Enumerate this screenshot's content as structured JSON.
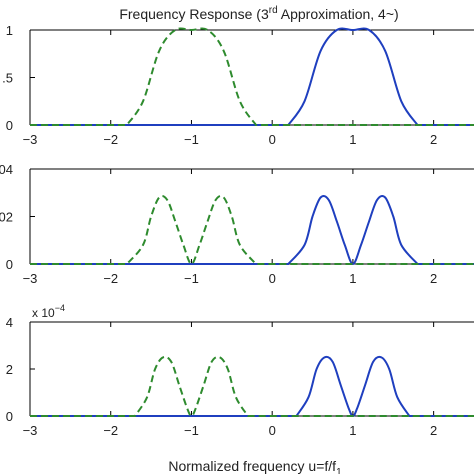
{
  "figure": {
    "title_main": "Frequency Response (3",
    "title_sup": "rd",
    "title_rest": " Approximation, 4~)",
    "xlabel_main": "Normalized frequency u=f/f",
    "xlabel_sub": "1"
  },
  "chart_data": [
    {
      "type": "line",
      "xlim": [
        -3,
        2.5
      ],
      "ylim": [
        0,
        1
      ],
      "x_ticks": [
        -3,
        -2,
        -1,
        0,
        1,
        2
      ],
      "x_tick_labels": [
        "−3",
        "−2",
        "−1",
        "0",
        "1",
        "2"
      ],
      "y_ticks": [
        0,
        0.5,
        1
      ],
      "y_tick_labels": [
        "0",
        ".5",
        "1"
      ],
      "scale_label": "",
      "grid": false,
      "series": [
        {
          "color": "#1f3fbf",
          "style": "solid",
          "x": [
            0.2,
            0.4,
            0.6,
            0.8,
            1.0,
            1.2,
            1.4,
            1.6,
            1.8
          ],
          "y": [
            0.0,
            0.25,
            0.78,
            1.0,
            1.0,
            1.0,
            0.78,
            0.25,
            0.0
          ]
        },
        {
          "color": "#2e8b2e",
          "style": "dashed",
          "x": [
            -1.8,
            -1.6,
            -1.4,
            -1.2,
            -1.0,
            -0.8,
            -0.6,
            -0.4,
            -0.2
          ],
          "y": [
            0.0,
            0.25,
            0.78,
            1.0,
            1.0,
            1.0,
            0.78,
            0.25,
            0.0
          ]
        }
      ]
    },
    {
      "type": "line",
      "xlim": [
        -3,
        2.5
      ],
      "ylim": [
        0,
        0.04
      ],
      "x_ticks": [
        -3,
        -2,
        -1,
        0,
        1,
        2
      ],
      "x_tick_labels": [
        "−3",
        "−2",
        "−1",
        "0",
        "1",
        "2"
      ],
      "y_ticks": [
        0,
        0.02,
        0.04
      ],
      "y_tick_labels": [
        "0",
        "02",
        "04"
      ],
      "scale_label": "",
      "grid": false,
      "series": [
        {
          "color": "#1f3fbf",
          "style": "solid",
          "x": [
            0.2,
            0.4,
            0.5,
            0.6,
            0.7,
            0.8,
            0.9,
            1.0,
            1.1,
            1.2,
            1.3,
            1.4,
            1.5,
            1.6,
            1.8
          ],
          "y": [
            0.0,
            0.008,
            0.02,
            0.028,
            0.027,
            0.018,
            0.008,
            0.0,
            0.008,
            0.018,
            0.027,
            0.028,
            0.02,
            0.008,
            0.0
          ]
        },
        {
          "color": "#2e8b2e",
          "style": "dashed",
          "x": [
            -1.8,
            -1.6,
            -1.5,
            -1.4,
            -1.3,
            -1.2,
            -1.1,
            -1.0,
            -0.9,
            -0.8,
            -0.7,
            -0.6,
            -0.5,
            -0.4,
            -0.2
          ],
          "y": [
            0.0,
            0.008,
            0.02,
            0.028,
            0.027,
            0.018,
            0.008,
            0.0,
            0.008,
            0.018,
            0.027,
            0.028,
            0.02,
            0.008,
            0.0
          ]
        }
      ]
    },
    {
      "type": "line",
      "xlim": [
        -3,
        2.5
      ],
      "ylim": [
        0,
        4
      ],
      "x_ticks": [
        -3,
        -2,
        -1,
        0,
        1,
        2
      ],
      "x_tick_labels": [
        "−3",
        "−2",
        "−1",
        "0",
        "1",
        "2"
      ],
      "y_ticks": [
        0,
        2,
        4
      ],
      "y_tick_labels": [
        "0",
        "2",
        "4"
      ],
      "scale_label": "x 10",
      "scale_exp": "−4",
      "grid": false,
      "series": [
        {
          "color": "#1f3fbf",
          "style": "solid",
          "x": [
            0.3,
            0.45,
            0.55,
            0.65,
            0.75,
            0.85,
            0.95,
            1.0,
            1.05,
            1.15,
            1.25,
            1.35,
            1.45,
            1.55,
            1.7
          ],
          "y": [
            0.0,
            0.8,
            2.0,
            2.5,
            2.3,
            1.3,
            0.3,
            0.0,
            0.3,
            1.3,
            2.3,
            2.5,
            2.0,
            0.8,
            0.0
          ]
        },
        {
          "color": "#2e8b2e",
          "style": "dashed",
          "x": [
            -1.7,
            -1.55,
            -1.45,
            -1.35,
            -1.25,
            -1.15,
            -1.05,
            -1.0,
            -0.95,
            -0.85,
            -0.75,
            -0.65,
            -0.55,
            -0.45,
            -0.3
          ],
          "y": [
            0.0,
            0.8,
            2.0,
            2.5,
            2.3,
            1.3,
            0.3,
            0.0,
            0.3,
            1.3,
            2.3,
            2.5,
            2.0,
            0.8,
            0.0
          ]
        }
      ]
    }
  ]
}
